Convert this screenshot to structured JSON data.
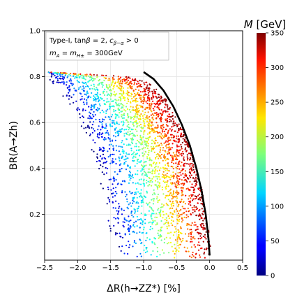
{
  "chart_data": {
    "type": "scatter",
    "xlabel": "ΔR(h→ZZ*) [%]",
    "ylabel": "BR(A→Zh)",
    "xlim": [
      -2.5,
      0.5
    ],
    "ylim": [
      0.0,
      1.0
    ],
    "x_ticks": [
      "−2.5",
      "−2.0",
      "−1.5",
      "−1.0",
      "−0.5",
      "0.0",
      "0.5"
    ],
    "y_ticks": [
      "0.2",
      "0.4",
      "0.6",
      "0.8",
      "1.0"
    ],
    "grid": true,
    "legend_lines": [
      "Type-I, tanβ = 2, c_{β−α} > 0",
      "m_A = m_{H±} = 300GeV"
    ],
    "legend_position": "top-left",
    "colorbar": {
      "label": "M [GeV]",
      "min": 0,
      "max": 350,
      "ticks": [
        "0",
        "50",
        "100",
        "150",
        "200",
        "250",
        "300",
        "350"
      ],
      "colormap": "jet"
    },
    "scatter_region": {
      "description_points": "dense band between inner and outer boundary",
      "inner_boundary": [
        [
          -2.45,
          0.8
        ],
        [
          -2.2,
          0.7
        ],
        [
          -1.95,
          0.6
        ],
        [
          -1.8,
          0.5
        ],
        [
          -1.7,
          0.4
        ],
        [
          -1.62,
          0.3
        ],
        [
          -1.57,
          0.2
        ],
        [
          -1.5,
          0.1
        ],
        [
          -1.45,
          0.02
        ]
      ],
      "outer_boundary": [
        [
          -2.45,
          0.82
        ],
        [
          -1.8,
          0.81
        ],
        [
          -1.2,
          0.8
        ],
        [
          -0.9,
          0.77
        ],
        [
          -0.65,
          0.7
        ],
        [
          -0.45,
          0.6
        ],
        [
          -0.3,
          0.5
        ],
        [
          -0.18,
          0.4
        ],
        [
          -0.1,
          0.3
        ],
        [
          -0.05,
          0.2
        ],
        [
          0.0,
          0.08
        ],
        [
          0.02,
          0.0
        ]
      ]
    },
    "black_curve": {
      "x": [
        -1.0,
        -0.85,
        -0.7,
        -0.55,
        -0.42,
        -0.3,
        -0.2,
        -0.12,
        -0.06,
        -0.02,
        0.0
      ],
      "y": [
        0.82,
        0.79,
        0.74,
        0.67,
        0.59,
        0.5,
        0.4,
        0.3,
        0.2,
        0.1,
        0.02
      ]
    }
  }
}
